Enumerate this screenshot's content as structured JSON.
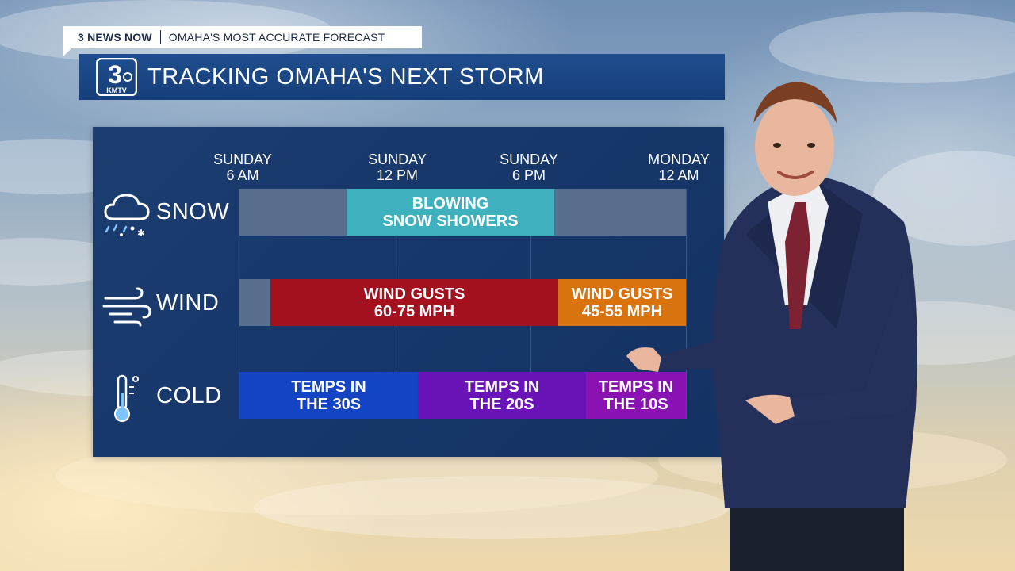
{
  "tag_bar": {
    "brand": "3 NEWS NOW",
    "tagline": "OMAHA'S MOST ACCURATE FORECAST"
  },
  "header": {
    "logo_number": "3",
    "logo_text": "KMTV",
    "title": "TRACKING OMAHA'S NEXT STORM"
  },
  "timeline": {
    "times": [
      {
        "day": "SUNDAY",
        "hour": "6 AM"
      },
      {
        "day": "SUNDAY",
        "hour": "12 PM"
      },
      {
        "day": "SUNDAY",
        "hour": "6 PM"
      },
      {
        "day": "MONDAY",
        "hour": "12 AM"
      }
    ]
  },
  "rows": {
    "snow": {
      "label": "SNOW",
      "icon": "snow-cloud-icon",
      "bar_text": "BLOWING\nSNOW SHOWERS",
      "bar_color": "#3fb0bd"
    },
    "wind": {
      "label": "WIND",
      "icon": "wind-icon",
      "bars": [
        {
          "text": "WIND GUSTS\n60-75 MPH",
          "color": "#a3101e"
        },
        {
          "text": "WIND GUSTS\n45-55 MPH",
          "color": "#d9730d"
        }
      ]
    },
    "cold": {
      "label": "COLD",
      "icon": "thermometer-icon",
      "bars": [
        {
          "text": "TEMPS IN\nTHE 30S",
          "color": "#1244c4"
        },
        {
          "text": "TEMPS IN\nTHE 20S",
          "color": "#6a13b8"
        },
        {
          "text": "TEMPS IN\nTHE 10S",
          "color": "#8a12b2"
        }
      ]
    }
  },
  "colors": {
    "panel": "#17376a",
    "header": "#1c4886",
    "empty_track": "#5a6f8e"
  }
}
